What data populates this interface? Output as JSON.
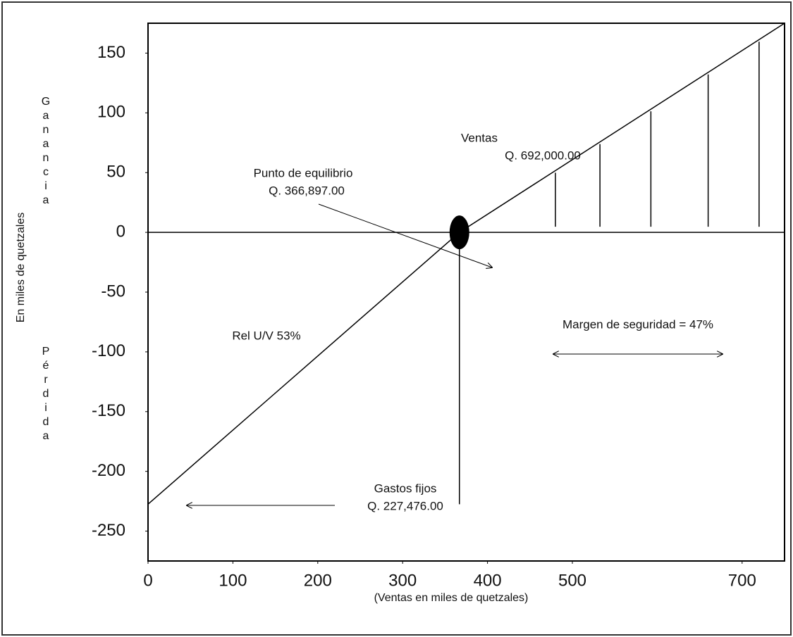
{
  "chart_data": {
    "type": "line",
    "y_label": "En miles de quetzales",
    "y_label_top": "Ganancia",
    "y_label_bottom": "Pérdida",
    "x_label": "(Ventas en miles de quetzales)",
    "xlim": [
      0,
      750
    ],
    "xticks": [
      0,
      100,
      200,
      300,
      400,
      500,
      700
    ],
    "ylim": [
      -275,
      175
    ],
    "yticks": [
      150,
      100,
      50,
      0,
      -50,
      -100,
      -150,
      -200,
      -250
    ],
    "series": [
      {
        "name": "Ventas",
        "color": "#000000",
        "x": [
          0,
          366.897,
          750
        ],
        "values": [
          -227.476,
          0,
          175
        ]
      }
    ],
    "annotations": {
      "ventas": [
        "Ventas",
        "Q. 692,000.00"
      ],
      "equilibrio": [
        "Punto de equilibrio",
        "Q. 366,897.00"
      ],
      "rel": "Rel U/V  53%",
      "margen": "Margen de seguridad = 47%",
      "gastos": [
        "Gastos fijos",
        "Q. 227,476.00"
      ]
    }
  }
}
